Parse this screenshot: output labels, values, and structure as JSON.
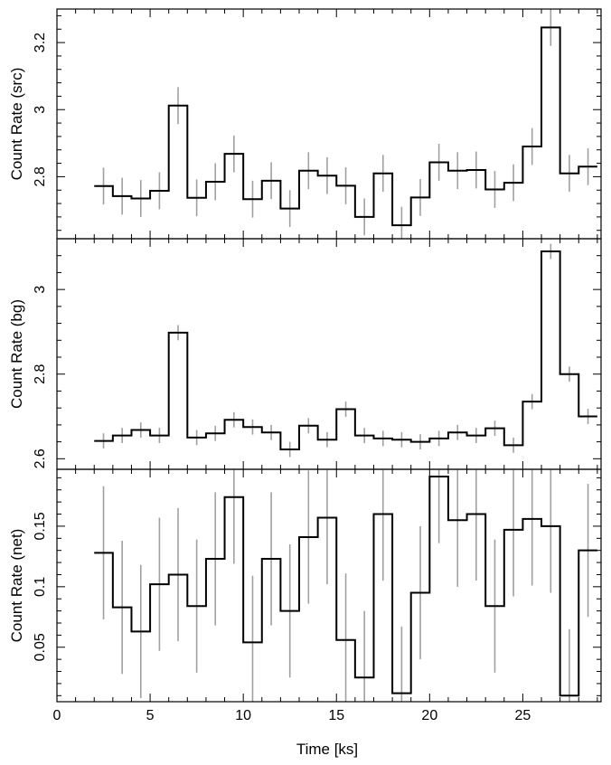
{
  "chart_data": [
    {
      "type": "line",
      "ylabel": "Count Rate (src)",
      "xlabel": "Time [ks]",
      "xlim": [
        0,
        29.2
      ],
      "ylim": [
        2.615,
        3.3
      ],
      "xticks": [
        0,
        5,
        10,
        15,
        20,
        25
      ],
      "xtick_labels": [
        "0",
        "5",
        "10",
        "15",
        "20",
        "25"
      ],
      "yticks": [
        2.8,
        3.0,
        3.2
      ],
      "ytick_labels": [
        "2.8",
        "3",
        "3.2"
      ],
      "bin_width_ks": 1,
      "x": [
        2.5,
        3.5,
        4.5,
        5.5,
        6.5,
        7.5,
        8.5,
        9.5,
        10.5,
        11.5,
        12.5,
        13.5,
        14.5,
        15.5,
        16.5,
        17.5,
        18.5,
        19.5,
        20.5,
        21.5,
        22.5,
        23.5,
        24.5,
        25.5,
        26.5,
        27.5,
        28.5
      ],
      "values": [
        2.772,
        2.742,
        2.735,
        2.758,
        3.012,
        2.737,
        2.785,
        2.868,
        2.733,
        2.788,
        2.705,
        2.818,
        2.803,
        2.773,
        2.68,
        2.81,
        2.655,
        2.738,
        2.843,
        2.818,
        2.82,
        2.762,
        2.782,
        2.89,
        3.245,
        2.81,
        2.83
      ],
      "errors": [
        0.055,
        0.055,
        0.055,
        0.055,
        0.055,
        0.055,
        0.055,
        0.055,
        0.055,
        0.055,
        0.055,
        0.055,
        0.055,
        0.055,
        0.055,
        0.055,
        0.055,
        0.055,
        0.055,
        0.055,
        0.055,
        0.055,
        0.055,
        0.055,
        0.055,
        0.055,
        0.055
      ]
    },
    {
      "type": "line",
      "ylabel": "Count Rate (bg)",
      "xlabel": "Time [ks]",
      "xlim": [
        0,
        29.2
      ],
      "ylim": [
        2.575,
        3.12
      ],
      "xticks": [
        0,
        5,
        10,
        15,
        20,
        25
      ],
      "xtick_labels": [
        "0",
        "5",
        "10",
        "15",
        "20",
        "25"
      ],
      "yticks": [
        2.6,
        2.8,
        3.0
      ],
      "ytick_labels": [
        "2.6",
        "2.8",
        "3"
      ],
      "bin_width_ks": 1,
      "x": [
        2.5,
        3.5,
        4.5,
        5.5,
        6.5,
        7.5,
        8.5,
        9.5,
        10.5,
        11.5,
        12.5,
        13.5,
        14.5,
        15.5,
        16.5,
        17.5,
        18.5,
        19.5,
        20.5,
        21.5,
        22.5,
        23.5,
        24.5,
        25.5,
        26.5,
        27.5,
        28.5
      ],
      "values": [
        2.642,
        2.655,
        2.668,
        2.655,
        2.898,
        2.65,
        2.66,
        2.692,
        2.675,
        2.662,
        2.622,
        2.678,
        2.645,
        2.717,
        2.655,
        2.648,
        2.645,
        2.64,
        2.648,
        2.662,
        2.655,
        2.672,
        2.632,
        2.735,
        3.09,
        2.8,
        2.7
      ],
      "errors": [
        0.018,
        0.018,
        0.018,
        0.018,
        0.018,
        0.018,
        0.018,
        0.018,
        0.018,
        0.018,
        0.018,
        0.018,
        0.018,
        0.018,
        0.018,
        0.018,
        0.018,
        0.018,
        0.018,
        0.018,
        0.018,
        0.018,
        0.018,
        0.018,
        0.018,
        0.018,
        0.018
      ]
    },
    {
      "type": "line",
      "ylabel": "Count Rate (net)",
      "xlabel": "Time [ks]",
      "xlim": [
        0,
        29.2
      ],
      "ylim": [
        0.005,
        0.197
      ],
      "xticks": [
        0,
        5,
        10,
        15,
        20,
        25
      ],
      "xtick_labels": [
        "0",
        "5",
        "10",
        "15",
        "20",
        "25"
      ],
      "yticks": [
        0.05,
        0.1,
        0.15
      ],
      "ytick_labels": [
        "0.05",
        "0.1",
        "0.15"
      ],
      "bin_width_ks": 1,
      "x": [
        2.5,
        3.5,
        4.5,
        5.5,
        6.5,
        7.5,
        8.5,
        9.5,
        10.5,
        11.5,
        12.5,
        13.5,
        14.5,
        15.5,
        16.5,
        17.5,
        18.5,
        19.5,
        20.5,
        21.5,
        22.5,
        23.5,
        24.5,
        25.5,
        26.5,
        27.5,
        28.5
      ],
      "values": [
        0.128,
        0.083,
        0.063,
        0.102,
        0.11,
        0.084,
        0.123,
        0.174,
        0.054,
        0.123,
        0.08,
        0.141,
        0.157,
        0.056,
        0.025,
        0.16,
        0.012,
        0.095,
        0.191,
        0.155,
        0.16,
        0.084,
        0.147,
        0.156,
        0.15,
        0.01,
        0.13
      ],
      "errors": [
        0.055,
        0.055,
        0.055,
        0.055,
        0.055,
        0.055,
        0.055,
        0.055,
        0.055,
        0.055,
        0.055,
        0.055,
        0.055,
        0.055,
        0.055,
        0.055,
        0.055,
        0.055,
        0.055,
        0.055,
        0.055,
        0.055,
        0.055,
        0.055,
        0.055,
        0.055,
        0.055
      ]
    }
  ],
  "x_axis_label": "Time [ks]",
  "colors": {
    "step_line": "#000000",
    "error_bar": "#a0a0a0",
    "frame": "#000000"
  }
}
